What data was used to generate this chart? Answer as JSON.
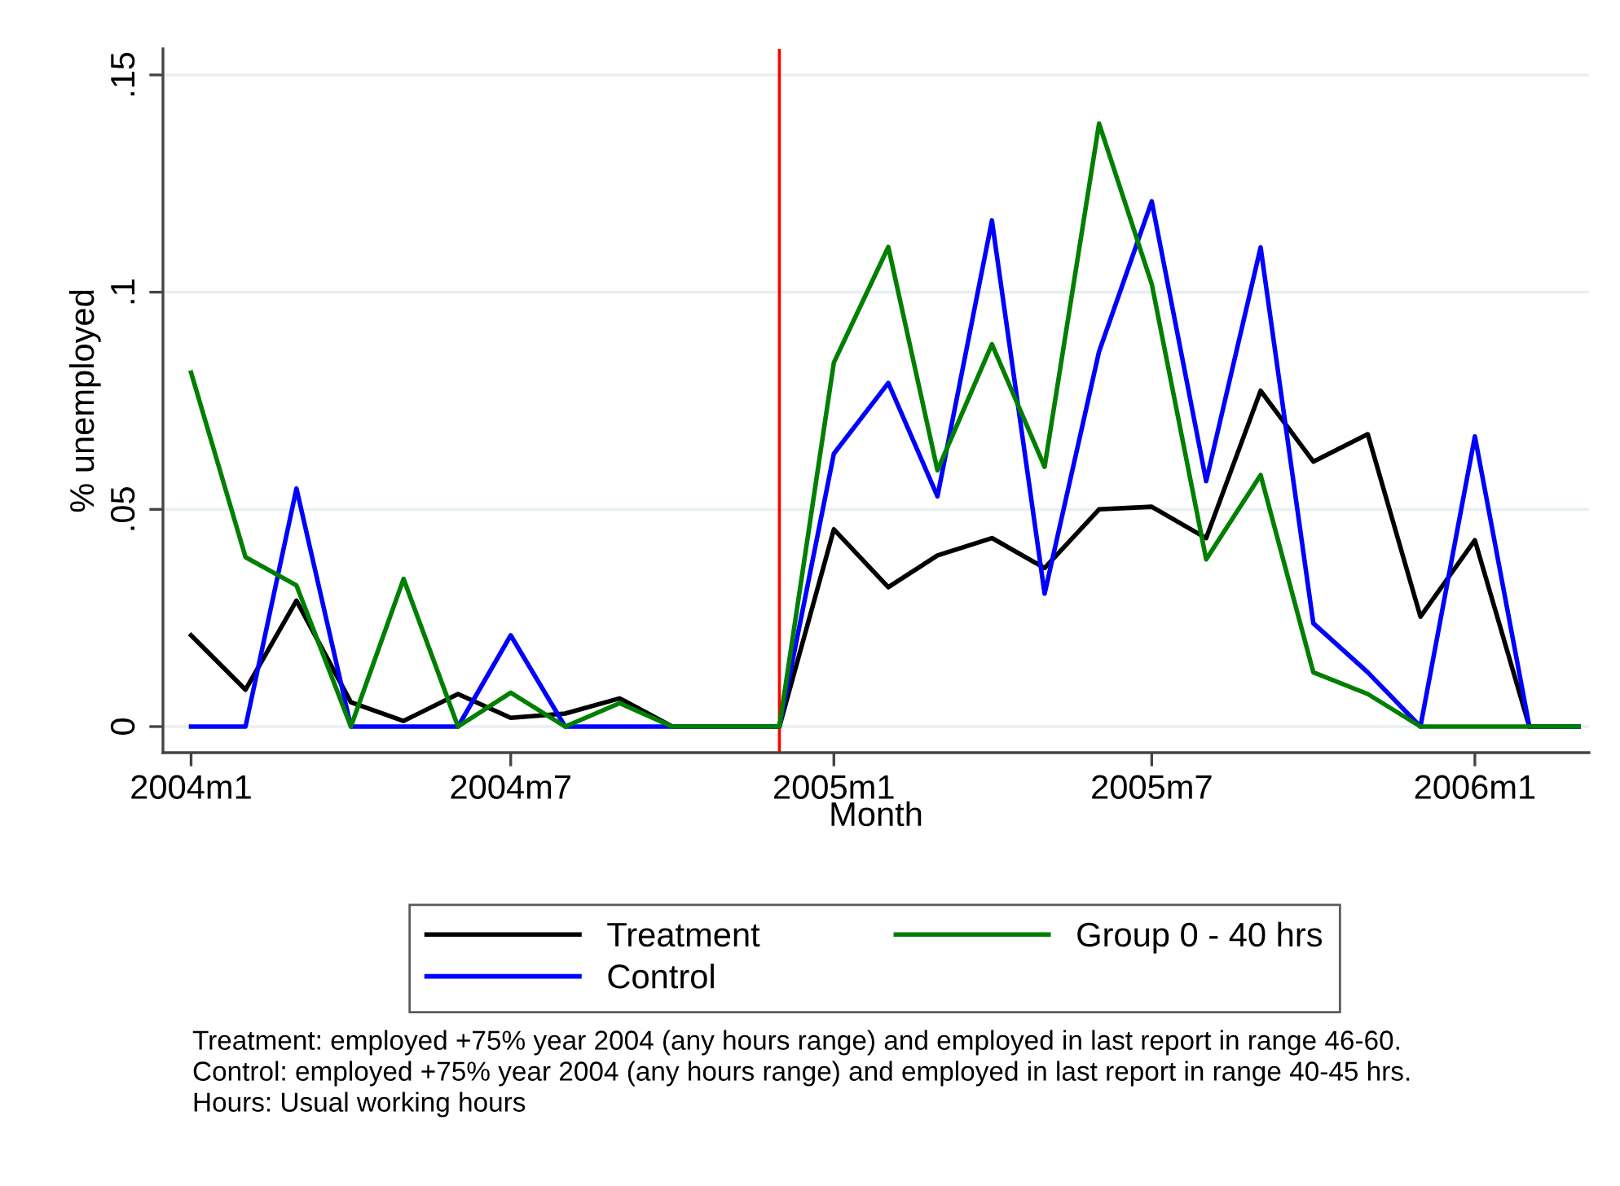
{
  "chart_data": {
    "type": "line",
    "xlabel": "Month",
    "ylabel": "% unemployed",
    "x": [
      "2004-01",
      "2004-02",
      "2004-03",
      "2004-04",
      "2004-05",
      "2004-06",
      "2004-07",
      "2004-08",
      "2004-09",
      "2004-10",
      "2004-11",
      "2004-12",
      "2005-01",
      "2005-02",
      "2005-03",
      "2005-04",
      "2005-05",
      "2005-06",
      "2005-07",
      "2005-08",
      "2005-09",
      "2005-10",
      "2005-11",
      "2005-12",
      "2006-01",
      "2006-02",
      "2006-03"
    ],
    "series": [
      {
        "name": "Treatment",
        "color": "#000000",
        "values": [
          0.021,
          0.0085,
          0.029,
          0.0056,
          0.0013,
          0.0075,
          0.002,
          0.003,
          0.0065,
          0,
          0,
          0,
          0.0454,
          0.0321,
          0.0394,
          0.0434,
          0.0365,
          0.05,
          0.0506,
          0.0434,
          0.0773,
          0.061,
          0.0673,
          0.0253,
          0.0429,
          0,
          0
        ]
      },
      {
        "name": "Control",
        "color": "#0000ff",
        "values": [
          0,
          0,
          0.0548,
          0,
          0,
          0,
          0.021,
          0,
          0,
          0,
          0,
          0,
          0.0628,
          0.0791,
          0.053,
          0.1165,
          0.0306,
          0.0863,
          0.1209,
          0.0565,
          0.1103,
          0.0238,
          0.0125,
          0,
          0.0668,
          0,
          0
        ]
      },
      {
        "name": "Group 0 - 40 hrs",
        "color": "#007f00",
        "values": [
          0.0815,
          0.039,
          0.0325,
          0,
          0.034,
          0,
          0.0078,
          0,
          0.0054,
          0,
          0,
          0,
          0.0838,
          0.1104,
          0.059,
          0.088,
          0.0598,
          0.1388,
          0.1019,
          0.0385,
          0.0579,
          0.0125,
          0.0075,
          0,
          0,
          0,
          0
        ]
      }
    ],
    "xlim": [
      "2003-12-16",
      "2006-03-07"
    ],
    "xticks": [
      {
        "value": "2004-01",
        "label": "2004m1"
      },
      {
        "value": "2004-07",
        "label": "2004m7"
      },
      {
        "value": "2005-01",
        "label": "2005m1"
      },
      {
        "value": "2005-07",
        "label": "2005m7"
      },
      {
        "value": "2006-01",
        "label": "2006m1"
      }
    ],
    "ylim": [
      -0.006,
      0.156
    ],
    "yticks": [
      {
        "value": 0,
        "label": "0"
      },
      {
        "value": 0.05,
        "label": ".05"
      },
      {
        "value": 0.1,
        "label": ".1"
      },
      {
        "value": 0.15,
        "label": ".15"
      }
    ],
    "ref_lines": [
      {
        "axis": "x",
        "value": "2004-12",
        "color": "#ff0000"
      }
    ],
    "grid": "y",
    "legend": "bottom",
    "line_style": "solid",
    "marker": "none",
    "annotations": [
      "Treatment: employed +75% year 2004 (any hours range) and employed in last report in range 46-60.",
      "Control: employed +75% year 2004 (any hours range) and employed in last report in range 40-45 hrs.",
      "Hours: Usual working hours"
    ]
  }
}
